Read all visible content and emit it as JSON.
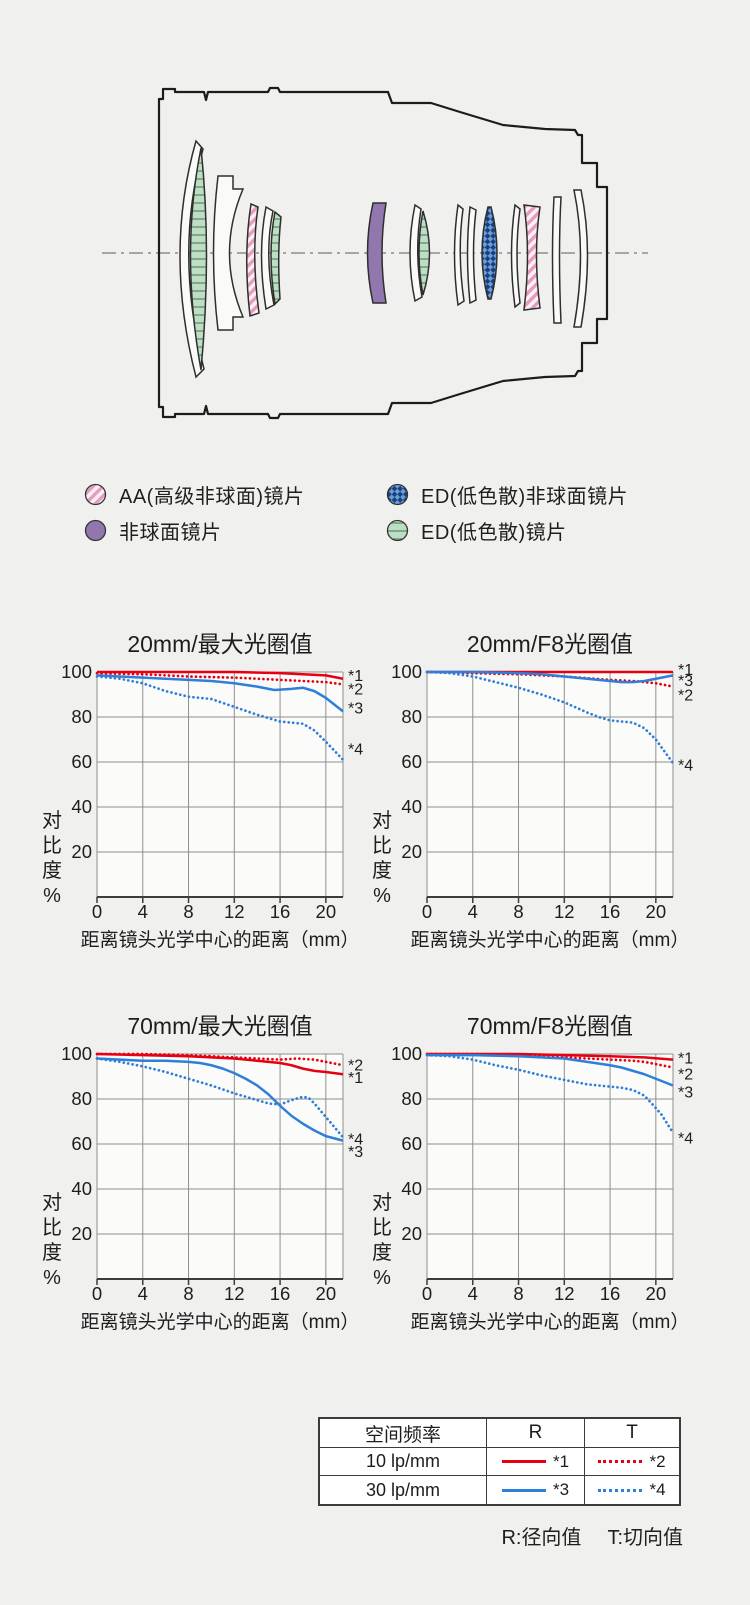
{
  "colors": {
    "red": "#e60012",
    "blue": "#2e7fd9",
    "grid": "#8f8f8f",
    "axis": "#3c3c3c",
    "plot_bg": "#fbfbfa"
  },
  "lens_legend": {
    "items": [
      {
        "id": "aa",
        "label": "AA(高级非球面)镜片",
        "swatch": "pink-hatch"
      },
      {
        "id": "ed-asph",
        "label": "ED(低色散)非球面镜片",
        "swatch": "blue-check"
      },
      {
        "id": "asph",
        "label": "非球面镜片",
        "swatch": "purple-solid"
      },
      {
        "id": "ed",
        "label": "ED(低色散)镜片",
        "swatch": "green-stripe"
      }
    ]
  },
  "chart_data": {
    "type": "line",
    "ylabel": "对比度%",
    "xlabel": "距离镜头光学中心的距离（mm）",
    "yticks": [
      100,
      80,
      60,
      40,
      20
    ],
    "xticks": [
      0,
      4,
      8,
      12,
      16,
      20
    ],
    "xmax": 21.5,
    "ylim": [
      0,
      100
    ],
    "grid": true,
    "charts": [
      {
        "title": "20mm/最大光圈值",
        "series": [
          {
            "name": "*1",
            "freq": "10 lp/mm",
            "dir": "R",
            "color": "red",
            "style": "solid",
            "points": [
              [
                0,
                100
              ],
              [
                4,
                100
              ],
              [
                8,
                100
              ],
              [
                12,
                100
              ],
              [
                16,
                99.5
              ],
              [
                18,
                99
              ],
              [
                20,
                98.5
              ],
              [
                21.5,
                97
              ]
            ]
          },
          {
            "name": "*2",
            "freq": "10 lp/mm",
            "dir": "T",
            "color": "red",
            "style": "dotted",
            "points": [
              [
                0,
                99.5
              ],
              [
                4,
                99
              ],
              [
                8,
                98
              ],
              [
                12,
                97.5
              ],
              [
                16,
                96.5
              ],
              [
                18,
                96
              ],
              [
                20,
                95.5
              ],
              [
                21.5,
                94.5
              ]
            ]
          },
          {
            "name": "*3",
            "freq": "30 lp/mm",
            "dir": "R",
            "color": "blue",
            "style": "solid",
            "points": [
              [
                0,
                98.5
              ],
              [
                2,
                98
              ],
              [
                4,
                97.5
              ],
              [
                6,
                97
              ],
              [
                8,
                96.5
              ],
              [
                10,
                96
              ],
              [
                12,
                95
              ],
              [
                14,
                93.5
              ],
              [
                15.5,
                92
              ],
              [
                17,
                92.5
              ],
              [
                18,
                93
              ],
              [
                19,
                91.5
              ],
              [
                20,
                88.5
              ],
              [
                21.5,
                82.5
              ]
            ]
          },
          {
            "name": "*4",
            "freq": "30 lp/mm",
            "dir": "T",
            "color": "blue",
            "style": "dotted",
            "points": [
              [
                0,
                98
              ],
              [
                2,
                97
              ],
              [
                4,
                95
              ],
              [
                6,
                91.5
              ],
              [
                8,
                89
              ],
              [
                10,
                88
              ],
              [
                12,
                84.5
              ],
              [
                14,
                81
              ],
              [
                15,
                79.5
              ],
              [
                16,
                78
              ],
              [
                17,
                77.5
              ],
              [
                18,
                77
              ],
              [
                19,
                74
              ],
              [
                20,
                69
              ],
              [
                21.5,
                61
              ]
            ]
          }
        ],
        "labels": [
          {
            "text": "*1",
            "v": 98.3
          },
          {
            "text": "*2",
            "v": 92.3
          },
          {
            "text": "*3",
            "v": 83.8
          },
          {
            "text": "*4",
            "v": 65.5
          }
        ]
      },
      {
        "title": "20mm/F8光圈值",
        "series": [
          {
            "name": "*1",
            "freq": "10 lp/mm",
            "dir": "R",
            "color": "red",
            "style": "solid",
            "points": [
              [
                0,
                100
              ],
              [
                8,
                100
              ],
              [
                16,
                100
              ],
              [
                21.5,
                100
              ]
            ]
          },
          {
            "name": "*2",
            "freq": "10 lp/mm",
            "dir": "T",
            "color": "red",
            "style": "dotted",
            "points": [
              [
                0,
                100
              ],
              [
                4,
                99.5
              ],
              [
                8,
                99
              ],
              [
                12,
                98
              ],
              [
                16,
                96.5
              ],
              [
                18,
                96
              ],
              [
                20,
                95
              ],
              [
                21.5,
                93.5
              ]
            ]
          },
          {
            "name": "*3",
            "freq": "30 lp/mm",
            "dir": "R",
            "color": "blue",
            "style": "solid",
            "points": [
              [
                0,
                100
              ],
              [
                4,
                100
              ],
              [
                8,
                99.5
              ],
              [
                10,
                99
              ],
              [
                12,
                98
              ],
              [
                14,
                97
              ],
              [
                16,
                96
              ],
              [
                17,
                95.5
              ],
              [
                18,
                95.5
              ],
              [
                19,
                96
              ],
              [
                20,
                97
              ],
              [
                21.5,
                98.5
              ]
            ]
          },
          {
            "name": "*4",
            "freq": "30 lp/mm",
            "dir": "T",
            "color": "blue",
            "style": "dotted",
            "points": [
              [
                0,
                100
              ],
              [
                2,
                99.5
              ],
              [
                4,
                98
              ],
              [
                6,
                95.5
              ],
              [
                8,
                93
              ],
              [
                10,
                90
              ],
              [
                12,
                86.5
              ],
              [
                14,
                82
              ],
              [
                15,
                80
              ],
              [
                16,
                78.5
              ],
              [
                17,
                78
              ],
              [
                18,
                77.5
              ],
              [
                19,
                75
              ],
              [
                20,
                70
              ],
              [
                21.5,
                59.5
              ]
            ]
          }
        ],
        "labels": [
          {
            "text": "*1",
            "v": 101
          },
          {
            "text": "*3",
            "v": 96
          },
          {
            "text": "*2",
            "v": 89.5
          },
          {
            "text": "*4",
            "v": 58.5
          }
        ]
      },
      {
        "title": "70mm/最大光圈值",
        "series": [
          {
            "name": "*2",
            "freq": "10 lp/mm",
            "dir": "T",
            "color": "red",
            "style": "dotted",
            "points": [
              [
                0,
                100
              ],
              [
                4,
                100
              ],
              [
                8,
                99.5
              ],
              [
                12,
                98.5
              ],
              [
                14,
                98
              ],
              [
                16,
                97.5
              ],
              [
                17.5,
                98
              ],
              [
                19,
                97.5
              ],
              [
                20,
                96.5
              ],
              [
                21.5,
                95
              ]
            ]
          },
          {
            "name": "*1",
            "freq": "10 lp/mm",
            "dir": "R",
            "color": "red",
            "style": "solid",
            "points": [
              [
                0,
                100
              ],
              [
                4,
                99.5
              ],
              [
                8,
                99
              ],
              [
                12,
                98
              ],
              [
                14,
                97
              ],
              [
                16,
                96
              ],
              [
                17,
                95
              ],
              [
                18,
                93.5
              ],
              [
                19,
                92.5
              ],
              [
                20,
                92
              ],
              [
                21.5,
                91
              ]
            ]
          },
          {
            "name": "*3",
            "freq": "30 lp/mm",
            "dir": "R",
            "color": "blue",
            "style": "solid",
            "points": [
              [
                0,
                98
              ],
              [
                2,
                97.5
              ],
              [
                4,
                97
              ],
              [
                6,
                97
              ],
              [
                8,
                96.5
              ],
              [
                9,
                96
              ],
              [
                10,
                95
              ],
              [
                11,
                93.5
              ],
              [
                12,
                91.5
              ],
              [
                13,
                89
              ],
              [
                14,
                86
              ],
              [
                15,
                82
              ],
              [
                16,
                77
              ],
              [
                17,
                72.5
              ],
              [
                18,
                69
              ],
              [
                19,
                66
              ],
              [
                20,
                63.5
              ],
              [
                21.5,
                61.5
              ]
            ]
          },
          {
            "name": "*4",
            "freq": "30 lp/mm",
            "dir": "T",
            "color": "blue",
            "style": "dotted",
            "points": [
              [
                0,
                98
              ],
              [
                2,
                96.5
              ],
              [
                4,
                94.5
              ],
              [
                6,
                92
              ],
              [
                8,
                89
              ],
              [
                10,
                86
              ],
              [
                12,
                82.5
              ],
              [
                13,
                81
              ],
              [
                14,
                79.5
              ],
              [
                15,
                78
              ],
              [
                16,
                77.5
              ],
              [
                17,
                79.5
              ],
              [
                18,
                81
              ],
              [
                18.5,
                80.5
              ],
              [
                19,
                78
              ],
              [
                20,
                72
              ],
              [
                21.5,
                63
              ]
            ]
          }
        ],
        "labels": [
          {
            "text": "*2",
            "v": 94.8
          },
          {
            "text": "*1",
            "v": 89.3
          },
          {
            "text": "*4",
            "v": 62
          },
          {
            "text": "*3",
            "v": 56.5
          }
        ]
      },
      {
        "title": "70mm/F8光圈值",
        "series": [
          {
            "name": "*1",
            "freq": "10 lp/mm",
            "dir": "R",
            "color": "red",
            "style": "solid",
            "points": [
              [
                0,
                100
              ],
              [
                8,
                100
              ],
              [
                12,
                99.5
              ],
              [
                16,
                99
              ],
              [
                19,
                98.5
              ],
              [
                21.5,
                97.5
              ]
            ]
          },
          {
            "name": "*2",
            "freq": "10 lp/mm",
            "dir": "T",
            "color": "red",
            "style": "dotted",
            "points": [
              [
                0,
                100
              ],
              [
                4,
                100
              ],
              [
                8,
                99.5
              ],
              [
                12,
                98.5
              ],
              [
                14,
                98
              ],
              [
                16,
                97.5
              ],
              [
                18,
                97
              ],
              [
                19,
                96.5
              ],
              [
                20,
                95.5
              ],
              [
                21.5,
                94
              ]
            ]
          },
          {
            "name": "*3",
            "freq": "30 lp/mm",
            "dir": "R",
            "color": "blue",
            "style": "solid",
            "points": [
              [
                0,
                99.5
              ],
              [
                4,
                99.5
              ],
              [
                8,
                99
              ],
              [
                10,
                98.5
              ],
              [
                12,
                98
              ],
              [
                14,
                96.5
              ],
              [
                16,
                95
              ],
              [
                17,
                94
              ],
              [
                18,
                92.5
              ],
              [
                19,
                91
              ],
              [
                20,
                89
              ],
              [
                21.5,
                86
              ]
            ]
          },
          {
            "name": "*4",
            "freq": "30 lp/mm",
            "dir": "T",
            "color": "blue",
            "style": "dotted",
            "points": [
              [
                0,
                99.5
              ],
              [
                2,
                99
              ],
              [
                4,
                97.5
              ],
              [
                6,
                95
              ],
              [
                8,
                93
              ],
              [
                10,
                90.5
              ],
              [
                12,
                88.5
              ],
              [
                14,
                86.5
              ],
              [
                15,
                86
              ],
              [
                16,
                85.5
              ],
              [
                17,
                85
              ],
              [
                18,
                84
              ],
              [
                19,
                81.5
              ],
              [
                20,
                76
              ],
              [
                20.5,
                73
              ],
              [
                21.5,
                65
              ]
            ]
          }
        ],
        "labels": [
          {
            "text": "*1",
            "v": 98
          },
          {
            "text": "*2",
            "v": 91
          },
          {
            "text": "*3",
            "v": 83
          },
          {
            "text": "*4",
            "v": 62.5
          }
        ]
      }
    ]
  },
  "table": {
    "headers": {
      "freq": "空间频率",
      "r": "R",
      "t": "T"
    },
    "rows": [
      {
        "freq": "10 lp/mm",
        "r_label": "*1",
        "t_label": "*2"
      },
      {
        "freq": "30 lp/mm",
        "r_label": "*3",
        "t_label": "*4"
      }
    ]
  },
  "footnote": {
    "r": "R:径向值",
    "t": "T:切向值"
  }
}
